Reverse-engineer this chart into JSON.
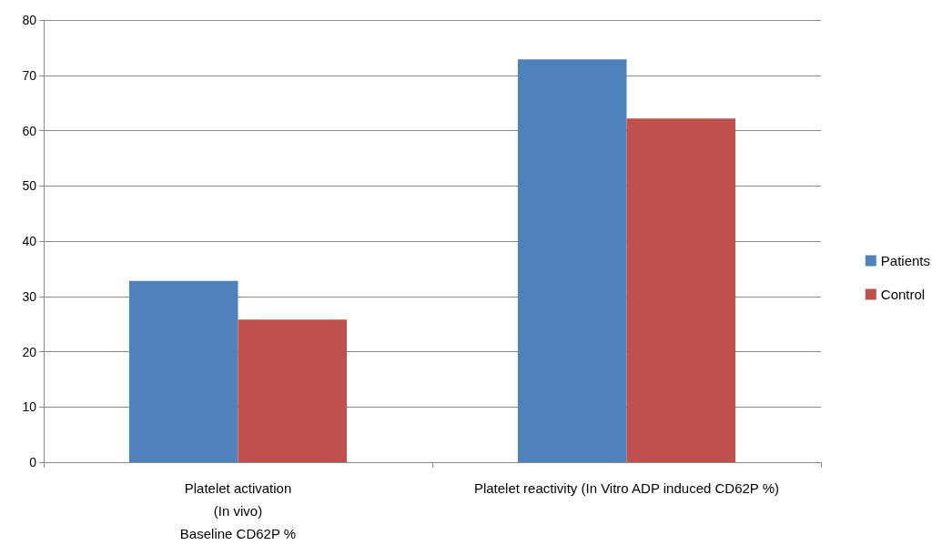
{
  "chart_data": {
    "type": "bar",
    "categories": [
      "Platelet activation\n(In vivo)\nBaseline CD62P %",
      "Platelet reactivity (In Vitro ADP induced CD62P %)"
    ],
    "series": [
      {
        "name": "Patients",
        "color": "#4f81bd",
        "values": [
          32.8,
          72.9
        ]
      },
      {
        "name": "Control",
        "color": "#c0504d",
        "values": [
          25.8,
          62.2
        ]
      }
    ],
    "ylim": [
      0,
      80
    ],
    "yticks": [
      0,
      10,
      20,
      30,
      40,
      50,
      60,
      70,
      80
    ],
    "grid": "y",
    "legend": "right"
  }
}
